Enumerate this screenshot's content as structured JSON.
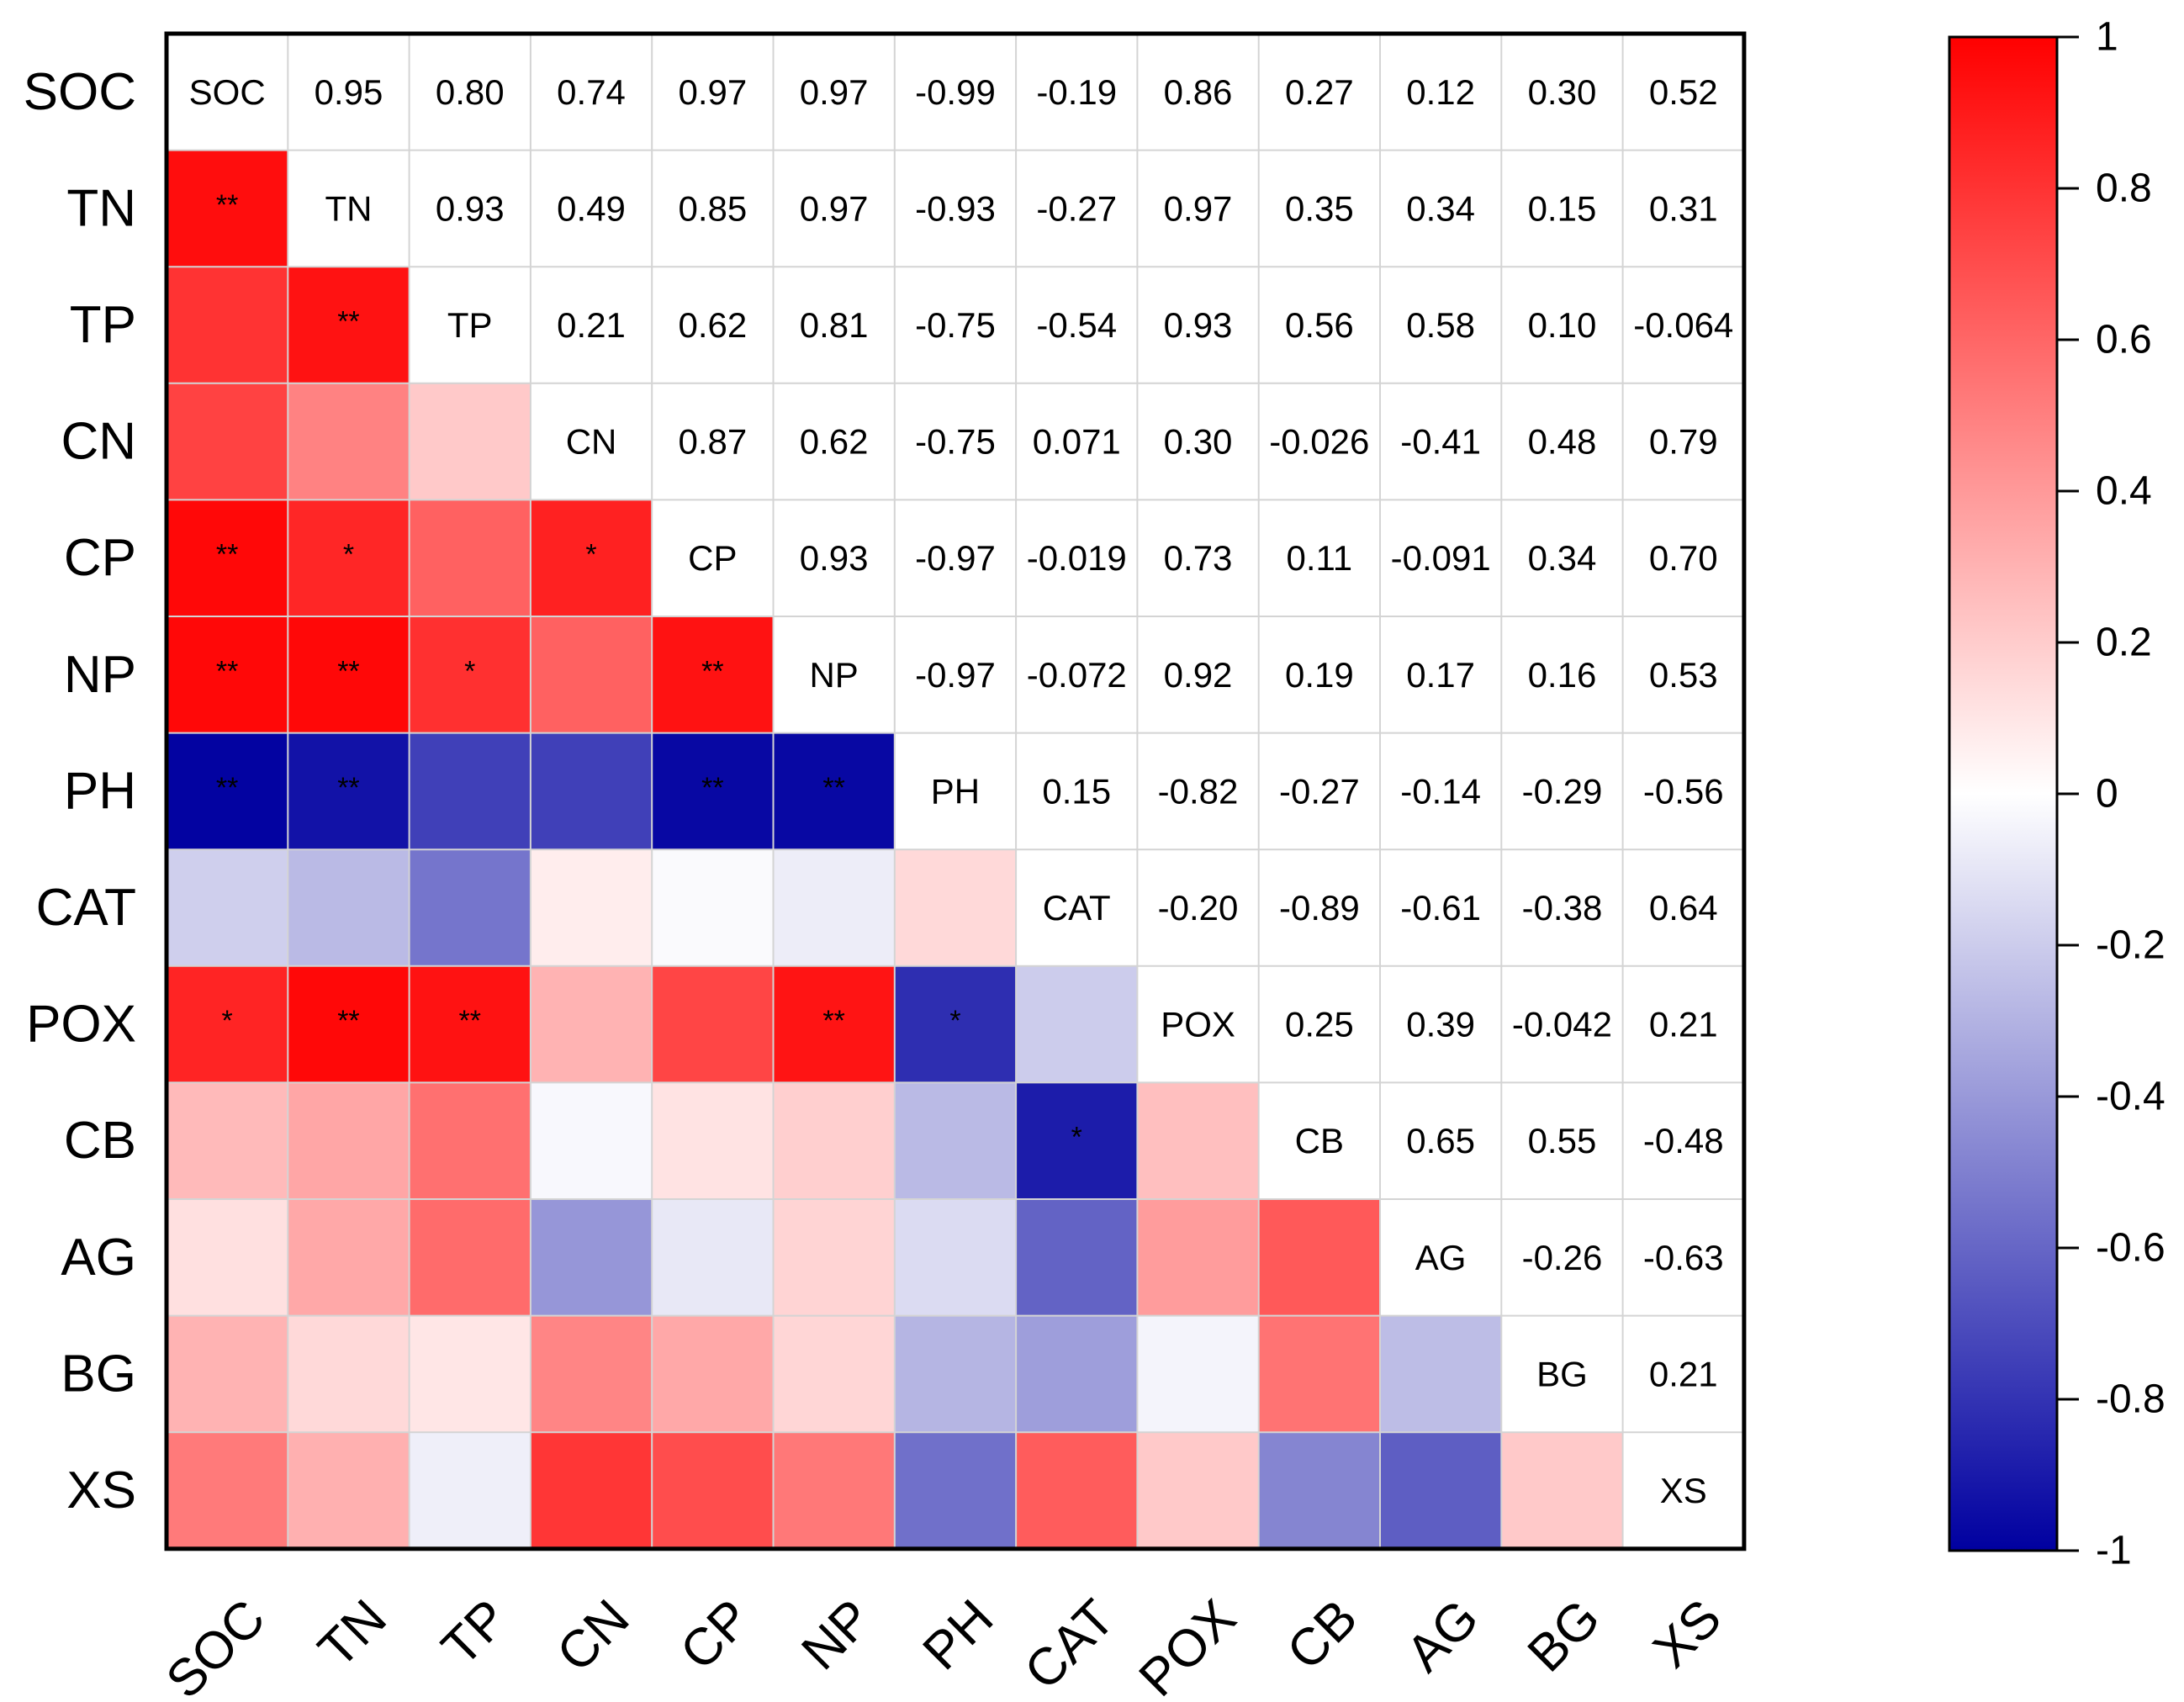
{
  "chart_data": {
    "type": "heatmap",
    "title": "",
    "variables": [
      "SOC",
      "TN",
      "TP",
      "CN",
      "CP",
      "NP",
      "PH",
      "CAT",
      "POX",
      "CB",
      "AG",
      "BG",
      "XS"
    ],
    "upper_labels": [
      [
        "SOC",
        "0.95",
        "0.80",
        "0.74",
        "0.97",
        "0.97",
        "-0.99",
        "-0.19",
        "0.86",
        "0.27",
        "0.12",
        "0.30",
        "0.52"
      ],
      [
        "",
        "TN",
        "0.93",
        "0.49",
        "0.85",
        "0.97",
        "-0.93",
        "-0.27",
        "0.97",
        "0.35",
        "0.34",
        "0.15",
        "0.31"
      ],
      [
        "",
        "",
        "TP",
        "0.21",
        "0.62",
        "0.81",
        "-0.75",
        "-0.54",
        "0.93",
        "0.56",
        "0.58",
        "0.10",
        "-0.064"
      ],
      [
        "",
        "",
        "",
        "CN",
        "0.87",
        "0.62",
        "-0.75",
        "0.071",
        "0.30",
        "-0.026",
        "-0.41",
        "0.48",
        "0.79"
      ],
      [
        "",
        "",
        "",
        "",
        "CP",
        "0.93",
        "-0.97",
        "-0.019",
        "0.73",
        "0.11",
        "-0.091",
        "0.34",
        "0.70"
      ],
      [
        "",
        "",
        "",
        "",
        "",
        "NP",
        "-0.97",
        "-0.072",
        "0.92",
        "0.19",
        "0.17",
        "0.16",
        "0.53"
      ],
      [
        "",
        "",
        "",
        "",
        "",
        "",
        "PH",
        "0.15",
        "-0.82",
        "-0.27",
        "-0.14",
        "-0.29",
        "-0.56"
      ],
      [
        "",
        "",
        "",
        "",
        "",
        "",
        "",
        "CAT",
        "-0.20",
        "-0.89",
        "-0.61",
        "-0.38",
        "0.64"
      ],
      [
        "",
        "",
        "",
        "",
        "",
        "",
        "",
        "",
        "POX",
        "0.25",
        "0.39",
        "-0.042",
        "0.21"
      ],
      [
        "",
        "",
        "",
        "",
        "",
        "",
        "",
        "",
        "",
        "CB",
        "0.65",
        "0.55",
        "-0.48"
      ],
      [
        "",
        "",
        "",
        "",
        "",
        "",
        "",
        "",
        "",
        "",
        "AG",
        "-0.26",
        "-0.63"
      ],
      [
        "",
        "",
        "",
        "",
        "",
        "",
        "",
        "",
        "",
        "",
        "",
        "BG",
        "0.21"
      ],
      [
        "",
        "",
        "",
        "",
        "",
        "",
        "",
        "",
        "",
        "",
        "",
        "",
        "XS"
      ]
    ],
    "significance": [
      [
        "",
        "",
        "",
        "",
        "",
        "",
        "",
        "",
        "",
        "",
        "",
        "",
        ""
      ],
      [
        "**",
        "",
        "",
        "",
        "",
        "",
        "",
        "",
        "",
        "",
        "",
        "",
        ""
      ],
      [
        "",
        "**",
        "",
        "",
        "",
        "",
        "",
        "",
        "",
        "",
        "",
        "",
        ""
      ],
      [
        "",
        "",
        "",
        "",
        "",
        "",
        "",
        "",
        "",
        "",
        "",
        "",
        ""
      ],
      [
        "**",
        "*",
        "",
        "*",
        "",
        "",
        "",
        "",
        "",
        "",
        "",
        "",
        ""
      ],
      [
        "**",
        "**",
        "*",
        "",
        "**",
        "",
        "",
        "",
        "",
        "",
        "",
        "",
        ""
      ],
      [
        "**",
        "**",
        "",
        "",
        "**",
        "**",
        "",
        "",
        "",
        "",
        "",
        "",
        ""
      ],
      [
        "",
        "",
        "",
        "",
        "",
        "",
        "",
        "",
        "",
        "",
        "",
        "",
        ""
      ],
      [
        "*",
        "**",
        "**",
        "",
        "",
        "**",
        "*",
        "",
        "",
        "",
        "",
        "",
        ""
      ],
      [
        "",
        "",
        "",
        "",
        "",
        "",
        "",
        "*",
        "",
        "",
        "",
        "",
        ""
      ],
      [
        "",
        "",
        "",
        "",
        "",
        "",
        "",
        "",
        "",
        "",
        "",
        "",
        ""
      ],
      [
        "",
        "",
        "",
        "",
        "",
        "",
        "",
        "",
        "",
        "",
        "",
        "",
        ""
      ],
      [
        "",
        "",
        "",
        "",
        "",
        "",
        "",
        "",
        "",
        "",
        "",
        "",
        ""
      ]
    ],
    "colorbar": {
      "range": [
        -1,
        1
      ],
      "ticks": [
        "1",
        "0.8",
        "0.6",
        "0.4",
        "0.2",
        "0",
        "-0.2",
        "-0.4",
        "-0.6",
        "-0.8",
        "-1"
      ],
      "tick_values": [
        1,
        0.8,
        0.6,
        0.4,
        0.2,
        0,
        -0.2,
        -0.4,
        -0.6,
        -0.8,
        -1
      ],
      "colors": {
        "negative": "#0000a0",
        "zero": "#ffffff",
        "positive": "#ff0000"
      }
    }
  }
}
